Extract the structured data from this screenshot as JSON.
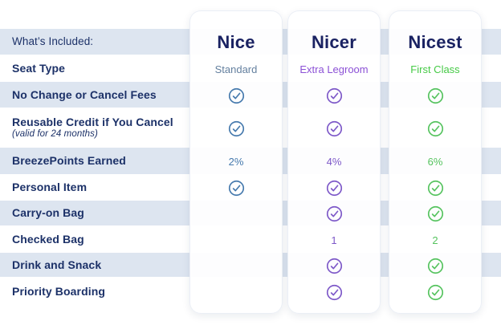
{
  "palette": {
    "stripe": "#dde5f0",
    "navy": "#1c3168",
    "title_navy": "#1a2262"
  },
  "header": {
    "included_label": "What’s Included:"
  },
  "row_labels": [
    {
      "label": "Seat Type"
    },
    {
      "label": "No Change or Cancel Fees"
    },
    {
      "label": "Reusable Credit if You Cancel",
      "note": "(valid for 24 months)"
    },
    {
      "label": "BreezePoints Earned"
    },
    {
      "label": "Personal Item"
    },
    {
      "label": "Carry-on Bag"
    },
    {
      "label": "Checked Bag"
    },
    {
      "label": "Drink and Snack"
    },
    {
      "label": "Priority Boarding"
    }
  ],
  "columns": [
    {
      "name": "Nice",
      "seat": "Standard",
      "seat_color": "#64809f",
      "accent": "#4579ad",
      "cells": [
        "check",
        "check",
        "2%",
        "check",
        "",
        "",
        "",
        ""
      ]
    },
    {
      "name": "Nicer",
      "seat": "Extra Legroom",
      "seat_color": "#8c51d6",
      "accent": "#7d58c8",
      "cells": [
        "check",
        "check",
        "4%",
        "check",
        "check",
        "1",
        "check",
        "check"
      ]
    },
    {
      "name": "Nicest",
      "seat": "First Class",
      "seat_color": "#46ca46",
      "accent": "#55c35e",
      "cells": [
        "check",
        "check",
        "6%",
        "check",
        "check",
        "2",
        "check",
        "check"
      ]
    }
  ],
  "icons": {
    "check": "check-icon"
  }
}
